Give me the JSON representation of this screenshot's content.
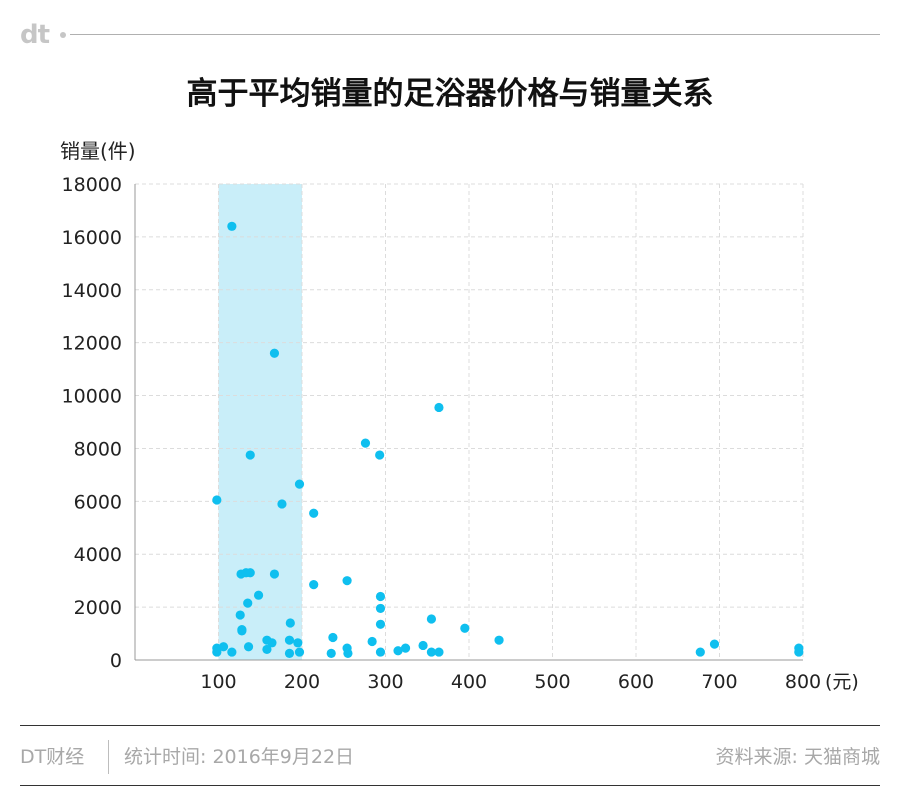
{
  "header": {
    "logo_text": "dt"
  },
  "chart_data": {
    "type": "scatter",
    "title": "高于平均销量的足浴器价格与销量关系",
    "ylabel": "销量(件)",
    "xlabel": "(元)",
    "xlim": [
      0,
      800
    ],
    "ylim": [
      0,
      18000
    ],
    "xticks": [
      100,
      200,
      300,
      400,
      500,
      600,
      700,
      800
    ],
    "yticks": [
      0,
      2000,
      4000,
      6000,
      8000,
      10000,
      12000,
      14000,
      16000,
      18000
    ],
    "grid": true,
    "highlight_range": [
      100,
      200
    ],
    "point_color": "#0fbfef",
    "highlight_color": "#c9eef9",
    "points": [
      {
        "x": 98,
        "y": 6050
      },
      {
        "x": 98,
        "y": 450
      },
      {
        "x": 98,
        "y": 300
      },
      {
        "x": 106,
        "y": 500
      },
      {
        "x": 116,
        "y": 16400
      },
      {
        "x": 116,
        "y": 300
      },
      {
        "x": 126,
        "y": 1700
      },
      {
        "x": 127,
        "y": 3250
      },
      {
        "x": 128,
        "y": 1100
      },
      {
        "x": 128,
        "y": 1150
      },
      {
        "x": 133,
        "y": 3300
      },
      {
        "x": 135,
        "y": 2150
      },
      {
        "x": 136,
        "y": 500
      },
      {
        "x": 138,
        "y": 3300
      },
      {
        "x": 138,
        "y": 7750
      },
      {
        "x": 148,
        "y": 2450
      },
      {
        "x": 158,
        "y": 400
      },
      {
        "x": 158,
        "y": 750
      },
      {
        "x": 164,
        "y": 650
      },
      {
        "x": 167,
        "y": 3250
      },
      {
        "x": 167,
        "y": 11600
      },
      {
        "x": 176,
        "y": 5900
      },
      {
        "x": 185,
        "y": 750
      },
      {
        "x": 185,
        "y": 250
      },
      {
        "x": 186,
        "y": 1400
      },
      {
        "x": 195,
        "y": 650
      },
      {
        "x": 197,
        "y": 6650
      },
      {
        "x": 197,
        "y": 300
      },
      {
        "x": 214,
        "y": 5550
      },
      {
        "x": 214,
        "y": 2850
      },
      {
        "x": 235,
        "y": 250
      },
      {
        "x": 237,
        "y": 850
      },
      {
        "x": 254,
        "y": 3000
      },
      {
        "x": 254,
        "y": 450
      },
      {
        "x": 255,
        "y": 250
      },
      {
        "x": 276,
        "y": 8200
      },
      {
        "x": 284,
        "y": 700
      },
      {
        "x": 293,
        "y": 7750
      },
      {
        "x": 294,
        "y": 2400
      },
      {
        "x": 294,
        "y": 1950
      },
      {
        "x": 294,
        "y": 1350
      },
      {
        "x": 294,
        "y": 300
      },
      {
        "x": 315,
        "y": 350
      },
      {
        "x": 324,
        "y": 450
      },
      {
        "x": 345,
        "y": 550
      },
      {
        "x": 355,
        "y": 1550
      },
      {
        "x": 355,
        "y": 300
      },
      {
        "x": 364,
        "y": 9550
      },
      {
        "x": 364,
        "y": 300
      },
      {
        "x": 395,
        "y": 1200
      },
      {
        "x": 436,
        "y": 750
      },
      {
        "x": 677,
        "y": 300
      },
      {
        "x": 694,
        "y": 600
      },
      {
        "x": 795,
        "y": 450
      },
      {
        "x": 795,
        "y": 300
      }
    ]
  },
  "footer": {
    "brand": "DT财经",
    "stat_time": "统计时间: 2016年9月22日",
    "source": "资料来源: 天猫商城"
  }
}
